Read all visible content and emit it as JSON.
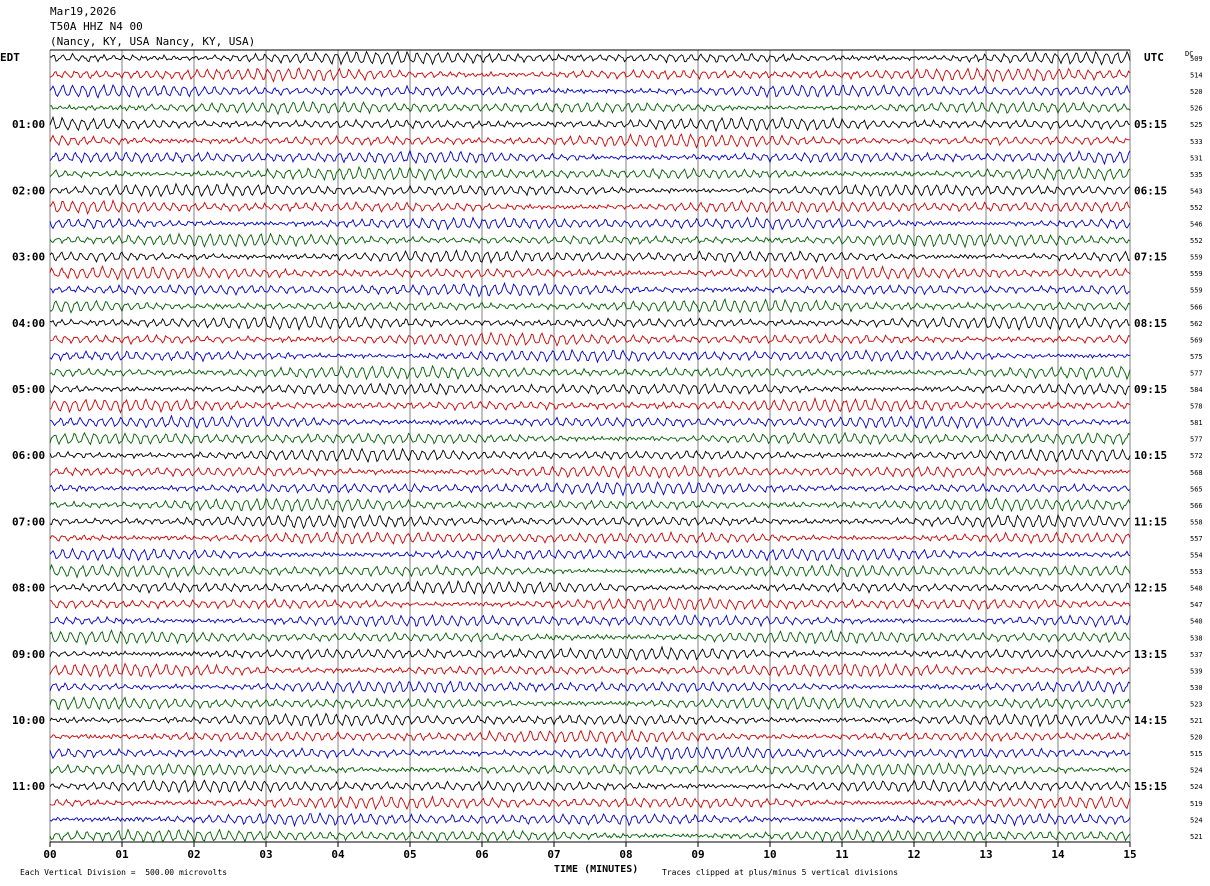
{
  "header": {
    "date": "Mar19,2026",
    "station": "T50A HHZ N4 00",
    "location": "(Nancy, KY, USA Nancy, KY, USA)"
  },
  "corners": {
    "left_tz": "EDT",
    "right_tz": "UTC",
    "dc_label": "DC"
  },
  "footer": {
    "scale_note": "Each Vertical Division =  500.00 microvolts",
    "axis_title": "TIME (MINUTES)",
    "clip_note": "Traces clipped at plus/minus 5 vertical divisions"
  },
  "colors": {
    "trace_cycle": [
      "#000000",
      "#d00000",
      "#0000c8",
      "#006000"
    ],
    "grid": "#000000"
  },
  "chart_data": {
    "type": "line",
    "title": "",
    "xlabel": "TIME (MINUTES)",
    "ylabel": "",
    "xlim": [
      0,
      15
    ],
    "x_ticks": [
      "00",
      "01",
      "02",
      "03",
      "04",
      "05",
      "06",
      "07",
      "08",
      "09",
      "10",
      "11",
      "12",
      "13",
      "14",
      "15"
    ],
    "grid": true,
    "traces_per_hour": 4,
    "left_hour_labels": [
      "01:00",
      "02:00",
      "03:00",
      "04:00",
      "05:00",
      "06:00",
      "07:00",
      "08:00",
      "09:00",
      "10:00",
      "11:00"
    ],
    "right_hour_labels": [
      "05:15",
      "06:15",
      "07:15",
      "08:15",
      "09:15",
      "10:15",
      "11:15",
      "12:15",
      "13:15",
      "14:15",
      "15:15"
    ],
    "dc_offsets": [
      509,
      514,
      520,
      526,
      525,
      533,
      531,
      535,
      543,
      552,
      546,
      552,
      559,
      559,
      559,
      566,
      562,
      569,
      575,
      577,
      584,
      578,
      581,
      577,
      572,
      568,
      565,
      566,
      558,
      557,
      554,
      553,
      548,
      547,
      540,
      538,
      537,
      539,
      530,
      523,
      521,
      520,
      515,
      524,
      524,
      519,
      524,
      521
    ]
  }
}
